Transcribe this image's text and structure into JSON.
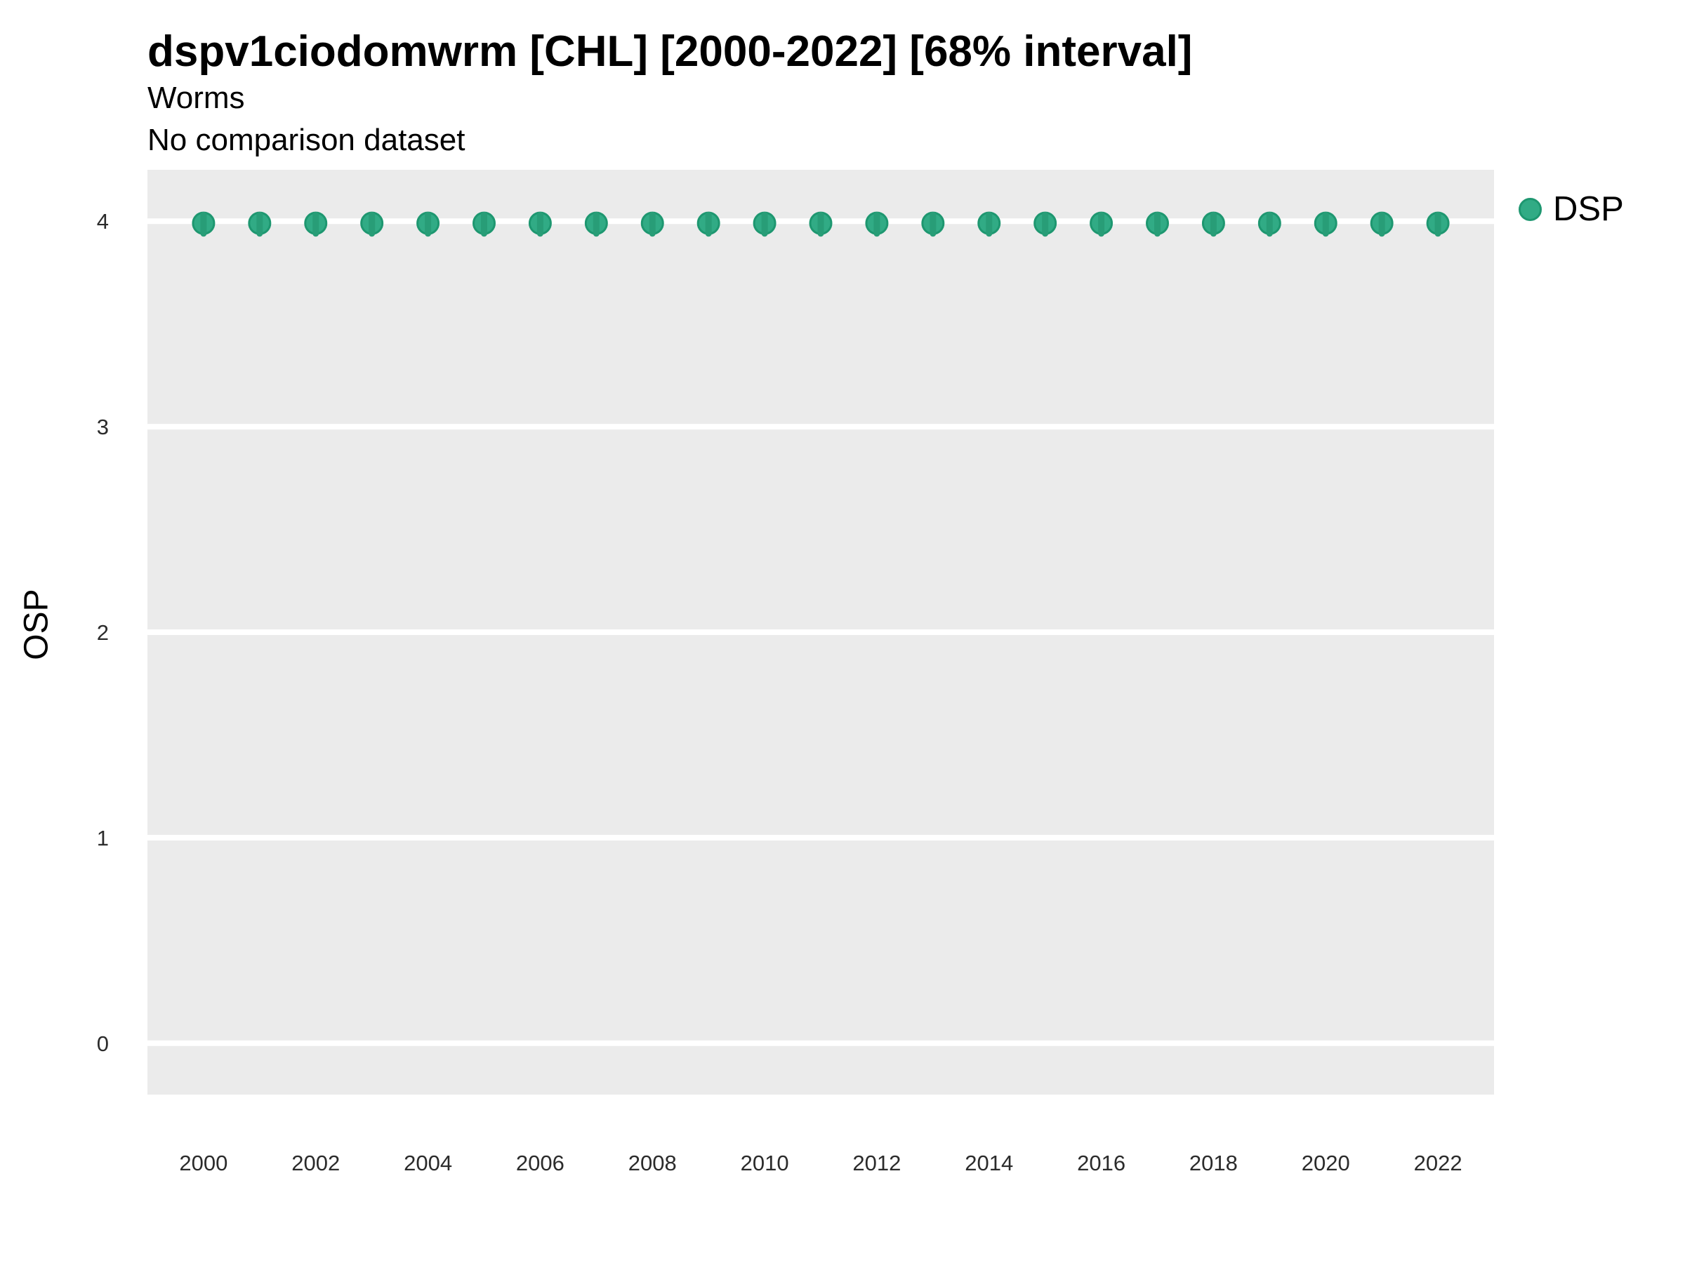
{
  "header": {
    "title": "dspv1ciodomwrm [CHL] [2000-2022] [68% interval]",
    "subtitle": "Worms",
    "comparison_note": "No comparison dataset"
  },
  "legend": {
    "position": "right-top",
    "items": [
      {
        "label": "DSP",
        "marker": "circle",
        "marker_color": "#31AB85",
        "marker_stroke": "#1E9770"
      }
    ]
  },
  "colors": {
    "figure_background": "#FFFFFF",
    "panel_background": "#EBEBEB",
    "gridline": "#FFFFFF",
    "point_fill": "#31AB85",
    "point_stroke": "#1E9770",
    "interval_line": "#289D77",
    "title_text": "#000000",
    "tick_text": "#2B2B2B"
  },
  "chart_data": {
    "type": "scatter",
    "title": "dspv1ciodomwrm [CHL] [2000-2022] [68% interval]",
    "subtitle": "Worms",
    "note": "No comparison dataset",
    "xlabel": "",
    "ylabel": "OSP",
    "xlim": [
      1999,
      2023
    ],
    "ylim": [
      -0.25,
      4.25
    ],
    "x_ticks": [
      2000,
      2002,
      2004,
      2006,
      2008,
      2010,
      2012,
      2014,
      2016,
      2018,
      2020,
      2022
    ],
    "y_ticks": [
      0,
      1,
      2,
      3,
      4
    ],
    "grid": "horizontal-major-only",
    "legend_position": "right",
    "interval_label": "68% interval",
    "series": [
      {
        "name": "DSP",
        "x": [
          2000,
          2001,
          2002,
          2003,
          2004,
          2005,
          2006,
          2007,
          2008,
          2009,
          2010,
          2011,
          2012,
          2013,
          2014,
          2015,
          2016,
          2017,
          2018,
          2019,
          2020,
          2021,
          2022
        ],
        "y": [
          3.99,
          3.99,
          3.99,
          3.99,
          3.99,
          3.99,
          3.99,
          3.99,
          3.99,
          3.99,
          3.99,
          3.99,
          3.99,
          3.99,
          3.99,
          3.99,
          3.99,
          3.99,
          3.99,
          3.99,
          3.99,
          3.99,
          3.99
        ],
        "y_low": [
          3.94,
          3.94,
          3.94,
          3.94,
          3.94,
          3.94,
          3.94,
          3.94,
          3.94,
          3.94,
          3.94,
          3.94,
          3.94,
          3.94,
          3.94,
          3.94,
          3.94,
          3.94,
          3.94,
          3.94,
          3.94,
          3.94,
          3.94
        ],
        "y_high": [
          4.03,
          4.03,
          4.03,
          4.03,
          4.03,
          4.03,
          4.03,
          4.03,
          4.03,
          4.03,
          4.03,
          4.03,
          4.03,
          4.03,
          4.03,
          4.03,
          4.03,
          4.03,
          4.03,
          4.03,
          4.03,
          4.03,
          4.03
        ]
      }
    ]
  }
}
